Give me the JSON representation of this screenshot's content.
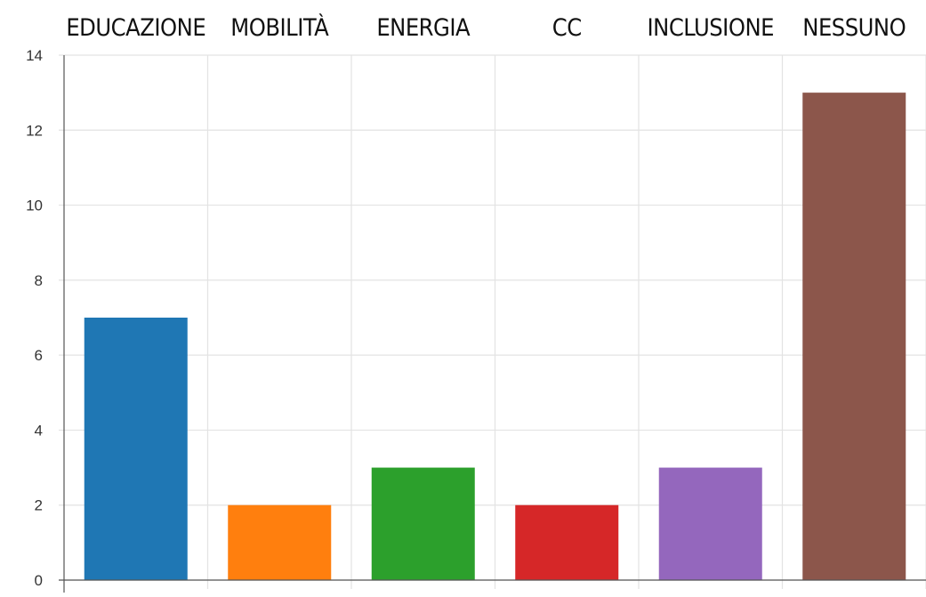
{
  "chart_data": {
    "type": "bar",
    "categories": [
      "EDUCAZIONE",
      "MOBILITÀ",
      "ENERGIA",
      "CC",
      "INCLUSIONE",
      "NESSUNO"
    ],
    "values": [
      7,
      2,
      3,
      2,
      3,
      13
    ],
    "colors": [
      "#1f77b4",
      "#ff7f0e",
      "#2ca02c",
      "#d62728",
      "#9467bd",
      "#8c564b"
    ],
    "title": "",
    "xlabel": "",
    "ylabel": "",
    "ylim": [
      0,
      14
    ],
    "yticks": [
      0,
      2,
      4,
      6,
      8,
      10,
      12,
      14
    ],
    "grid": true,
    "category_labels_position": "top",
    "legend": "none"
  }
}
